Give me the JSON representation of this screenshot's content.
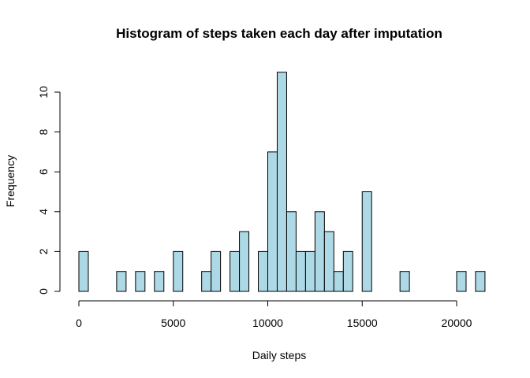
{
  "chart_data": {
    "type": "bar",
    "title": "Histogram of steps taken each day after imputation",
    "xlabel": "Daily steps",
    "ylabel": "Frequency",
    "bin_width": 500,
    "xlim": [
      0,
      21500
    ],
    "ylim": [
      0,
      11
    ],
    "x_ticks": [
      0,
      5000,
      10000,
      15000,
      20000
    ],
    "y_ticks": [
      0,
      2,
      4,
      6,
      8,
      10
    ],
    "bar_color": "#ADD8E6",
    "bin_starts": [
      0,
      500,
      1000,
      1500,
      2000,
      2500,
      3000,
      3500,
      4000,
      4500,
      5000,
      5500,
      6000,
      6500,
      7000,
      7500,
      8000,
      8500,
      9000,
      9500,
      10000,
      10500,
      11000,
      11500,
      12000,
      12500,
      13000,
      13500,
      14000,
      14500,
      15000,
      15500,
      16000,
      16500,
      17000,
      17500,
      18000,
      18500,
      19000,
      19500,
      20000,
      20500,
      21000
    ],
    "values": [
      2,
      0,
      0,
      0,
      1,
      0,
      1,
      0,
      1,
      0,
      2,
      0,
      0,
      1,
      2,
      0,
      2,
      3,
      0,
      2,
      7,
      11,
      4,
      2,
      2,
      4,
      3,
      1,
      2,
      0,
      5,
      0,
      0,
      0,
      1,
      0,
      0,
      0,
      0,
      0,
      1,
      0,
      1
    ],
    "grid": false,
    "legend": "none"
  }
}
